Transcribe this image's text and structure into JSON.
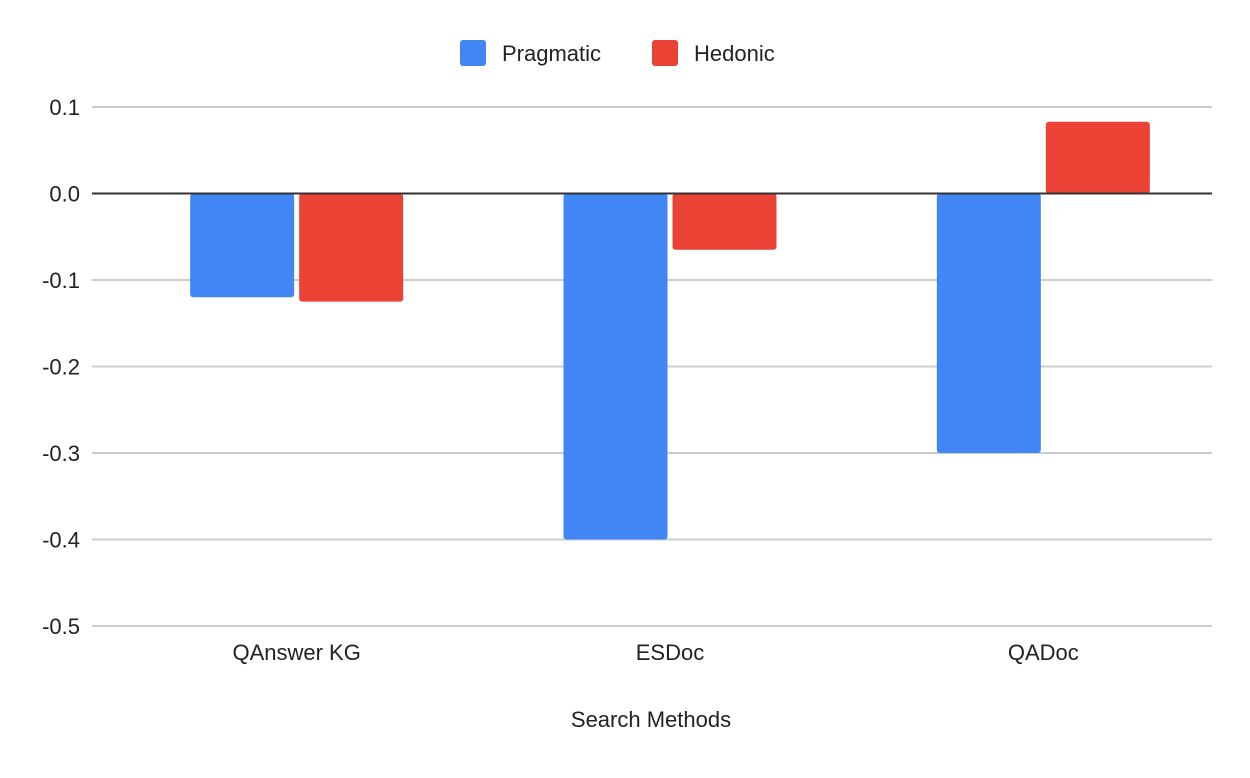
{
  "chart_data": {
    "type": "bar",
    "xlabel": "Search Methods",
    "ylabel": "",
    "categories": [
      "QAnswer KG",
      "ESDoc",
      "QADoc"
    ],
    "series": [
      {
        "name": "Pragmatic",
        "color": "#4285f4",
        "values": [
          -0.12,
          -0.4,
          -0.3
        ]
      },
      {
        "name": "Hedonic",
        "color": "#ea4335",
        "values": [
          -0.125,
          -0.065,
          0.083
        ]
      }
    ],
    "ylim": [
      -0.5,
      0.1
    ],
    "yticks": [
      0.1,
      0.0,
      -0.1,
      -0.2,
      -0.3,
      -0.4,
      -0.5
    ],
    "ytick_labels": [
      "0.1",
      "0.0",
      "-0.1",
      "-0.2",
      "-0.3",
      "-0.4",
      "-0.5"
    ],
    "grid": true,
    "legend_position": "top-center"
  }
}
